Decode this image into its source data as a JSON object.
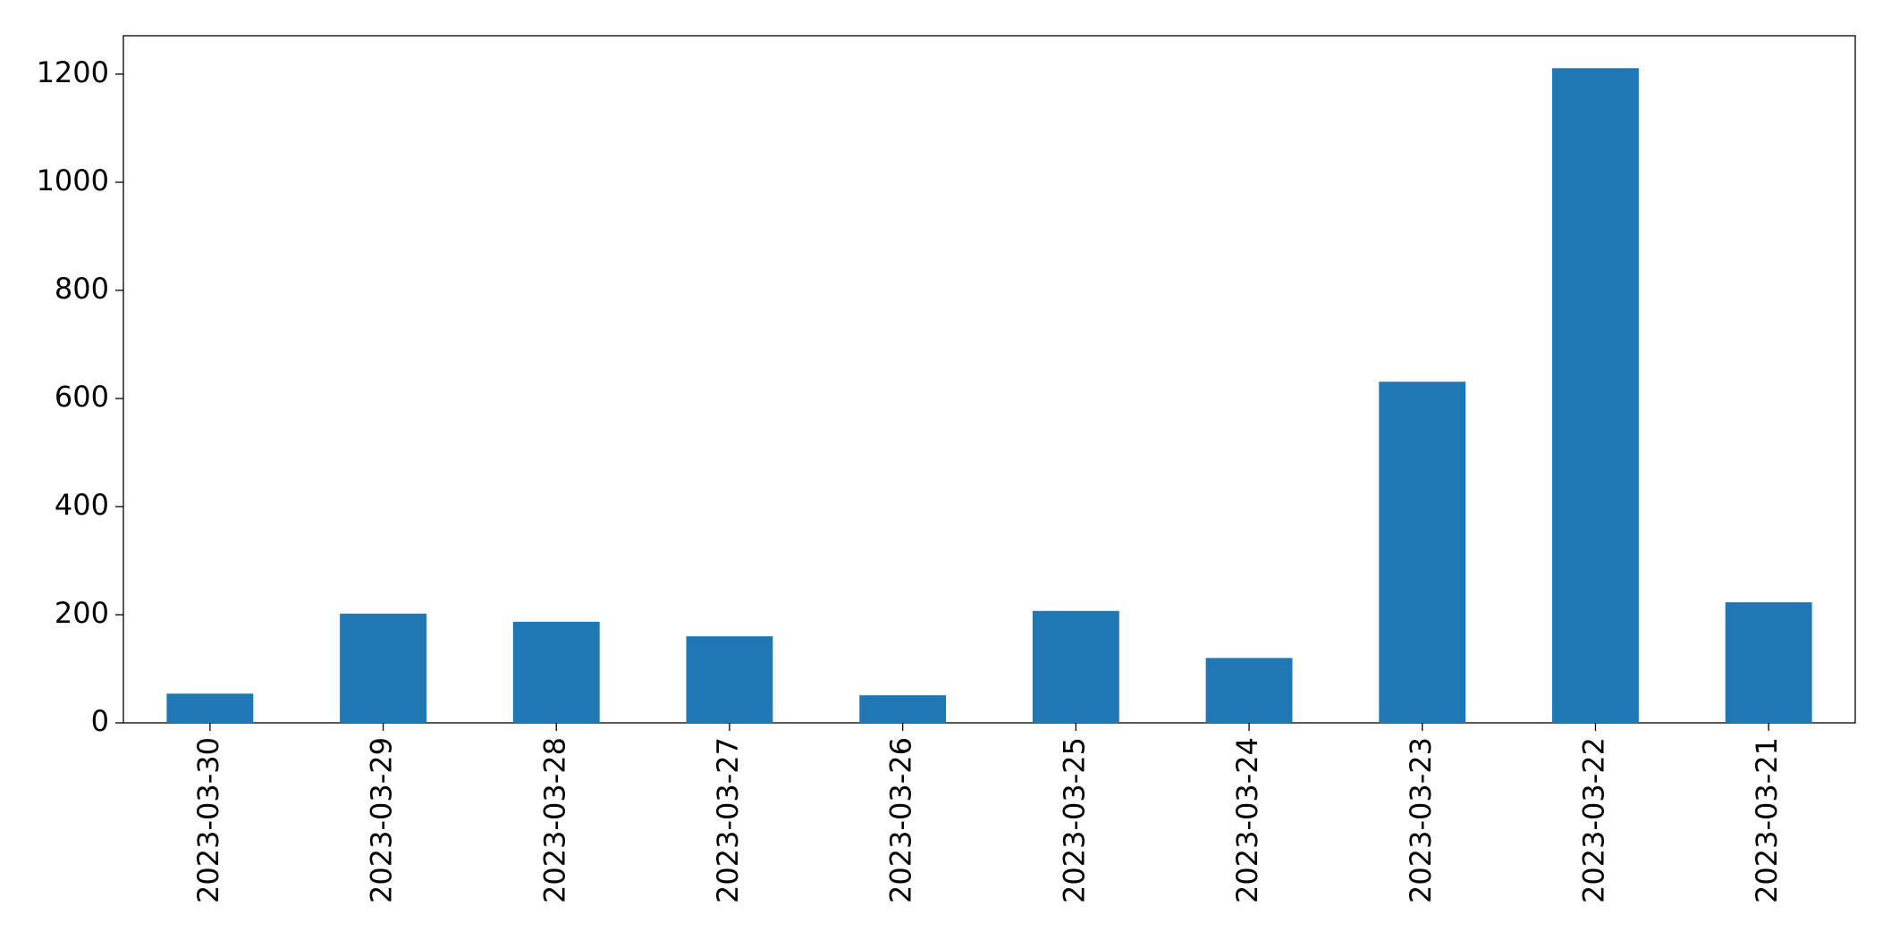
{
  "chart_data": {
    "type": "bar",
    "categories": [
      "2023-03-30",
      "2023-03-29",
      "2023-03-28",
      "2023-03-27",
      "2023-03-26",
      "2023-03-25",
      "2023-03-24",
      "2023-03-23",
      "2023-03-22",
      "2023-03-21"
    ],
    "values": [
      54,
      202,
      187,
      160,
      51,
      207,
      120,
      631,
      1211,
      223
    ],
    "color": "#1f77b4",
    "ylim": [
      0,
      1271
    ],
    "yticks": [
      0,
      200,
      400,
      600,
      800,
      1000,
      1200
    ],
    "grid": false
  }
}
